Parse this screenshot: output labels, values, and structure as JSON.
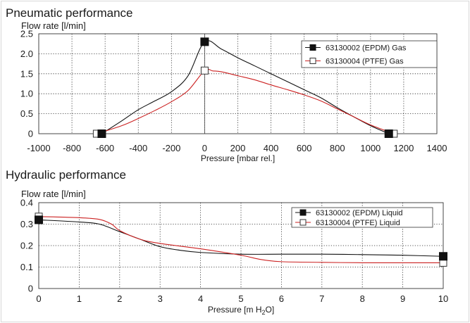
{
  "chart_data": [
    {
      "type": "line",
      "title": "Pneumatic performance",
      "ylabel": "Flow rate [l/min]",
      "xlabel": "Pressure [mbar rel.]",
      "xlim": [
        -1000,
        1400
      ],
      "ylim": [
        0,
        2.5
      ],
      "xticks": [
        -1000,
        -800,
        -600,
        -400,
        -200,
        0,
        200,
        400,
        600,
        800,
        1000,
        1200,
        1400
      ],
      "yticks": [
        0,
        0.5,
        1.0,
        1.5,
        2.0,
        2.5
      ],
      "ytick_labels": [
        "0",
        "0.5",
        "1.0",
        "1.5",
        "2.0",
        "2.5"
      ],
      "grid": true,
      "legend_position": "top-right",
      "series": [
        {
          "name": "63130002 (EPDM) Gas",
          "color": "#111111",
          "marker": "filled-square",
          "x": [
            -620,
            -500,
            -400,
            -300,
            -200,
            -100,
            0,
            100,
            200,
            300,
            400,
            500,
            600,
            700,
            800,
            900,
            1000,
            1110
          ],
          "y": [
            0,
            0.32,
            0.6,
            0.82,
            1.05,
            1.45,
            2.3,
            2.12,
            1.9,
            1.7,
            1.5,
            1.3,
            1.1,
            0.9,
            0.65,
            0.42,
            0.2,
            0
          ],
          "markers_at": [
            [
              -620,
              0
            ],
            [
              0,
              2.3
            ],
            [
              1110,
              0
            ]
          ]
        },
        {
          "name": "63130004 (PTFE) Gas",
          "color": "#cc2222",
          "marker": "open-square",
          "x": [
            -650,
            -500,
            -400,
            -300,
            -200,
            -100,
            0,
            50,
            100,
            200,
            300,
            400,
            500,
            600,
            700,
            800,
            900,
            1000,
            1140
          ],
          "y": [
            0,
            0.2,
            0.38,
            0.58,
            0.8,
            1.08,
            1.58,
            1.57,
            1.55,
            1.45,
            1.35,
            1.22,
            1.1,
            0.97,
            0.82,
            0.62,
            0.42,
            0.22,
            0
          ],
          "markers_at": [
            [
              -650,
              0
            ],
            [
              0,
              1.58
            ],
            [
              1140,
              0
            ]
          ]
        }
      ]
    },
    {
      "type": "line",
      "title": "Hydraulic performance",
      "ylabel": "Flow rate [l/min]",
      "xlabel": "Pressure [m H2O]",
      "xlabel_parts": [
        "Pressure [m H",
        "2",
        "O]"
      ],
      "xlim": [
        0,
        10
      ],
      "ylim": [
        0,
        0.4
      ],
      "xticks": [
        0,
        1,
        2,
        3,
        4,
        5,
        6,
        7,
        8,
        9,
        10
      ],
      "yticks": [
        0,
        0.1,
        0.2,
        0.3,
        0.4
      ],
      "ytick_labels": [
        "0",
        "0.1",
        "0.2",
        "0.3",
        "0.4"
      ],
      "grid": true,
      "legend_position": "top-right",
      "series": [
        {
          "name": "63130002 (EPDM) Liquid",
          "color": "#111111",
          "marker": "filled-square",
          "x": [
            0,
            1,
            1.5,
            2,
            2.5,
            3,
            3.5,
            4,
            5,
            6,
            7,
            8,
            9,
            10
          ],
          "y": [
            0.32,
            0.31,
            0.3,
            0.265,
            0.23,
            0.195,
            0.178,
            0.168,
            0.16,
            0.16,
            0.16,
            0.158,
            0.155,
            0.15
          ],
          "markers_at": [
            [
              0,
              0.32
            ],
            [
              10,
              0.15
            ]
          ]
        },
        {
          "name": "63130004 (PTFE) Liquid",
          "color": "#cc2222",
          "marker": "open-square",
          "x": [
            0,
            1,
            1.5,
            1.8,
            2,
            2.5,
            3,
            4,
            5,
            5.5,
            6,
            7,
            8,
            9,
            10
          ],
          "y": [
            0.335,
            0.33,
            0.322,
            0.3,
            0.27,
            0.23,
            0.21,
            0.185,
            0.155,
            0.135,
            0.125,
            0.122,
            0.12,
            0.12,
            0.12
          ],
          "markers_at": [
            [
              0,
              0.335
            ],
            [
              10,
              0.12
            ]
          ]
        }
      ]
    }
  ]
}
